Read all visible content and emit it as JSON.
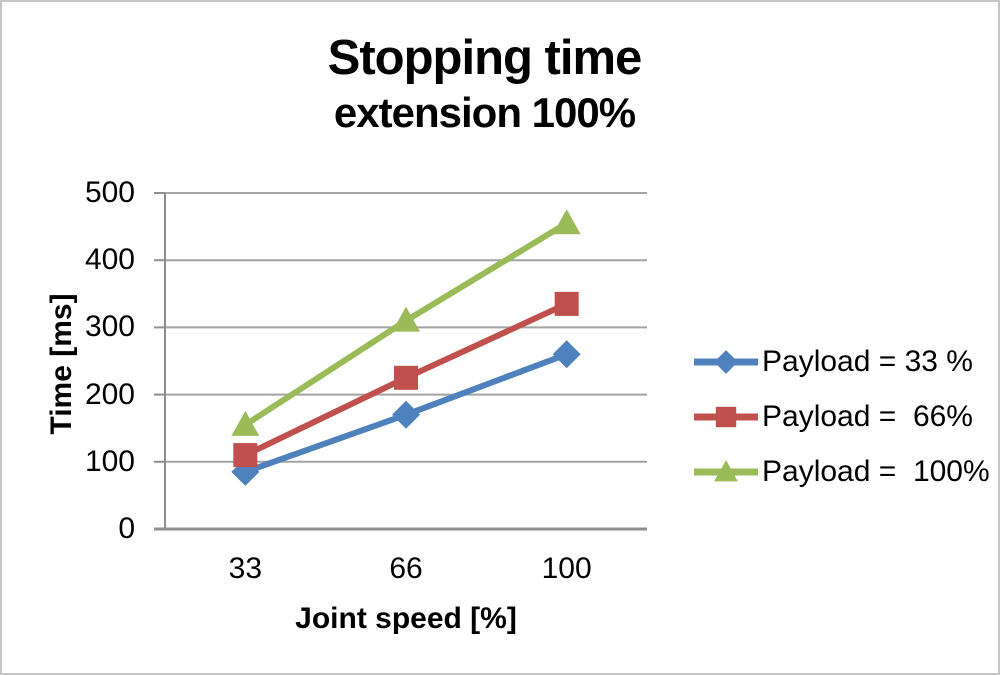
{
  "frame": {
    "background": "#ffffff",
    "border_color": "#c6c6c6"
  },
  "title": {
    "line1": "Stopping time",
    "line2": "extension 100%"
  },
  "chart_data": {
    "type": "line",
    "title": "Stopping time extension 100%",
    "categories": [
      "33",
      "66",
      "100"
    ],
    "series": [
      {
        "name": "Payload = 33 %",
        "marker": "diamond",
        "color": "#4F81BD",
        "values": [
          85,
          170,
          260
        ]
      },
      {
        "name": "Payload =  66%",
        "marker": "square",
        "color": "#C0504D",
        "values": [
          110,
          225,
          335
        ]
      },
      {
        "name": "Payload =  100%",
        "marker": "triangle",
        "color": "#9BBB59",
        "values": [
          155,
          310,
          455
        ]
      }
    ],
    "xlabel": "Joint speed [%]",
    "ylabel": "Time [ms]",
    "ylim": [
      0,
      500
    ],
    "yticks": [
      0,
      100,
      200,
      300,
      400,
      500
    ],
    "grid": true,
    "legend_position": "right",
    "colors": {
      "gridline": "#a3a3a3",
      "axis": "#8f8f8f",
      "text": "#000000"
    }
  }
}
